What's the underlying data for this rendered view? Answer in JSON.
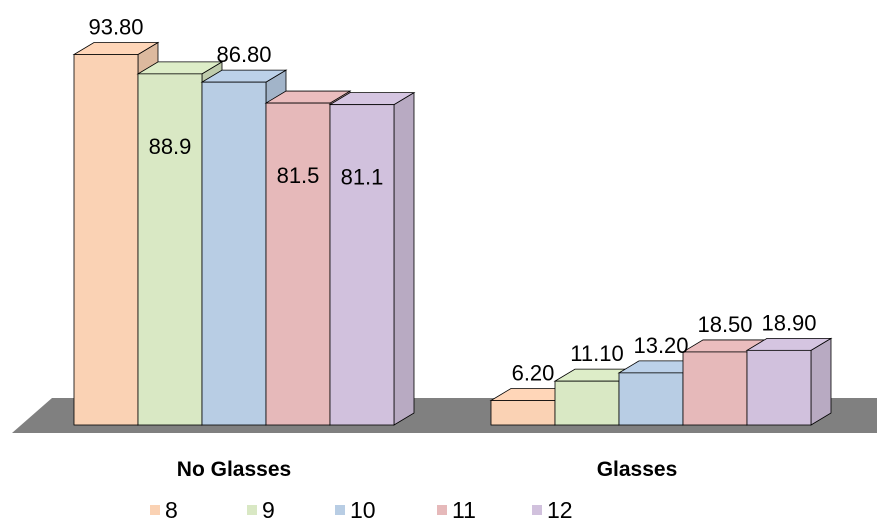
{
  "chart_data": {
    "type": "bar",
    "categories": [
      "No Glasses",
      "Glasses"
    ],
    "series": [
      {
        "name": "8",
        "color": "#FAD2B4",
        "values": [
          93.8,
          6.2
        ],
        "labels": [
          "93.80",
          "6.20"
        ]
      },
      {
        "name": "9",
        "color": "#D9E8C4",
        "values": [
          88.9,
          11.1
        ],
        "labels": [
          "88.9",
          "11.10"
        ]
      },
      {
        "name": "10",
        "color": "#B8CDE4",
        "values": [
          86.8,
          13.2
        ],
        "labels": [
          "86.80",
          "13.20"
        ]
      },
      {
        "name": "11",
        "color": "#E6B9BA",
        "values": [
          81.5,
          18.5
        ],
        "labels": [
          "81.5",
          "18.50"
        ]
      },
      {
        "name": "12",
        "color": "#D1C1DD",
        "values": [
          81.1,
          18.9
        ],
        "labels": [
          "81.1",
          "18.90"
        ]
      }
    ],
    "ylim": [
      0,
      100
    ],
    "legend_position": "bottom",
    "floor_color": "#808080",
    "grid": false
  }
}
